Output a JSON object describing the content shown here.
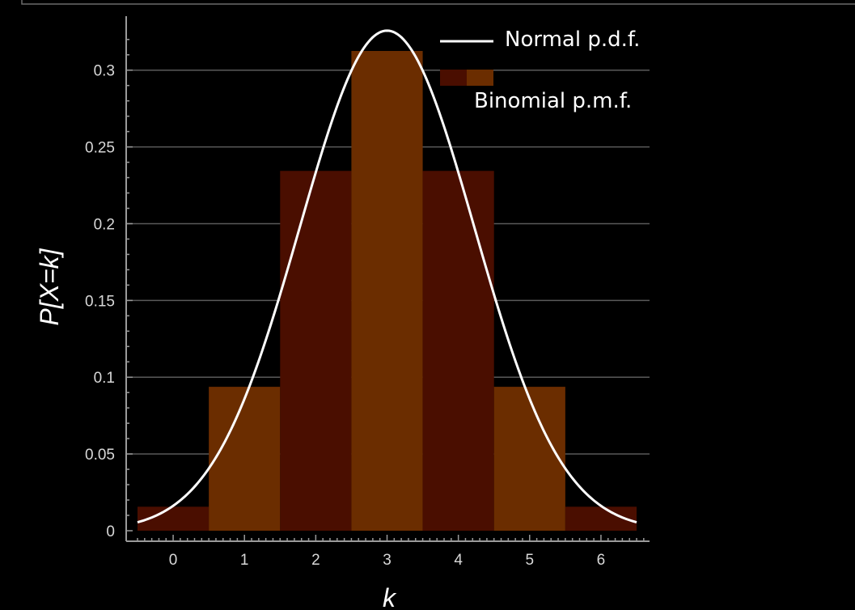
{
  "chart_data": {
    "type": "bar",
    "xlabel": "k",
    "ylabel": "P[X=k]",
    "xlim": [
      -0.5,
      6.5
    ],
    "ylim": [
      0,
      0.3125
    ],
    "x_ticks": [
      "0",
      "1",
      "2",
      "3",
      "4",
      "5",
      "6"
    ],
    "y_ticks": [
      "0",
      "0.05",
      "0.1",
      "0.15",
      "0.2",
      "0.25",
      "0.3"
    ],
    "y_tick_values": [
      0,
      0.05,
      0.1,
      0.15,
      0.2,
      0.25,
      0.3
    ],
    "grid": true,
    "legend_position": "top-right",
    "series": [
      {
        "name": "Binomial p.m.f.",
        "type": "bar",
        "x": [
          0,
          1,
          2,
          3,
          4,
          5,
          6
        ],
        "values": [
          0.015625,
          0.09375,
          0.234375,
          0.3125,
          0.234375,
          0.09375,
          0.015625
        ],
        "colors": [
          "#4a0e00",
          "#6b2d00"
        ]
      },
      {
        "name": "Normal p.d.f.",
        "type": "line",
        "mean": 3,
        "sd": 1.2247,
        "color": "#ffffff"
      }
    ]
  }
}
